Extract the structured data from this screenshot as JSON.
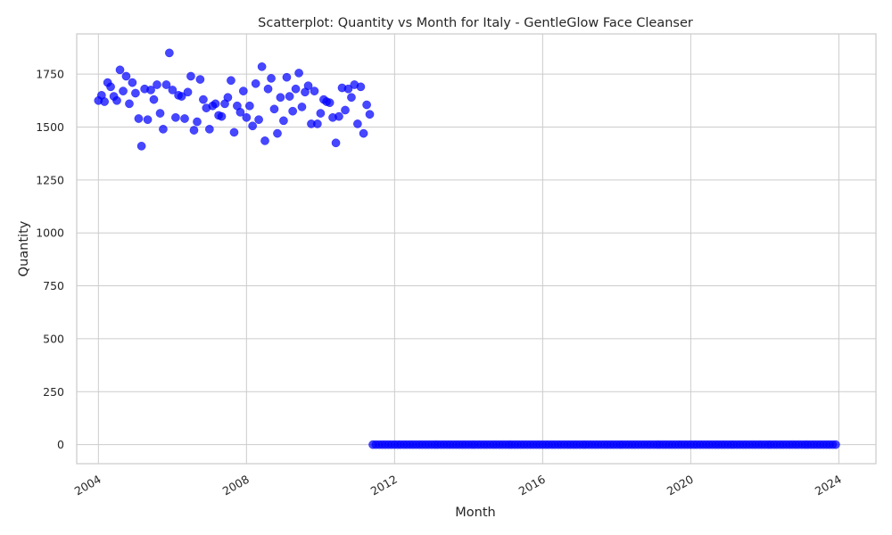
{
  "chart_data": {
    "type": "scatter",
    "title": "Scatterplot: Quantity vs Month for Italy - GentleGlow Face Cleanser",
    "xlabel": "Month",
    "ylabel": "Quantity",
    "xlim": [
      "2003-06-01",
      "2025-01-01"
    ],
    "ylim": [
      -90,
      1940
    ],
    "xticks": [
      {
        "value": "2004-01-01",
        "label": "2004"
      },
      {
        "value": "2008-01-01",
        "label": "2008"
      },
      {
        "value": "2012-01-01",
        "label": "2012"
      },
      {
        "value": "2016-01-01",
        "label": "2016"
      },
      {
        "value": "2020-01-01",
        "label": "2020"
      },
      {
        "value": "2024-01-01",
        "label": "2024"
      }
    ],
    "yticks": [
      0,
      250,
      500,
      750,
      1000,
      1250,
      1500,
      1750
    ],
    "grid": true,
    "marker_color": "#0000ff",
    "series": [
      {
        "points": [
          {
            "x": "2004-01",
            "y": 1625
          },
          {
            "x": "2004-02",
            "y": 1650
          },
          {
            "x": "2004-03",
            "y": 1620
          },
          {
            "x": "2004-04",
            "y": 1710
          },
          {
            "x": "2004-05",
            "y": 1690
          },
          {
            "x": "2004-06",
            "y": 1645
          },
          {
            "x": "2004-07",
            "y": 1625
          },
          {
            "x": "2004-08",
            "y": 1770
          },
          {
            "x": "2004-09",
            "y": 1670
          },
          {
            "x": "2004-10",
            "y": 1740
          },
          {
            "x": "2004-11",
            "y": 1610
          },
          {
            "x": "2004-12",
            "y": 1710
          },
          {
            "x": "2005-01",
            "y": 1660
          },
          {
            "x": "2005-02",
            "y": 1540
          },
          {
            "x": "2005-03",
            "y": 1410
          },
          {
            "x": "2005-04",
            "y": 1680
          },
          {
            "x": "2005-05",
            "y": 1535
          },
          {
            "x": "2005-06",
            "y": 1675
          },
          {
            "x": "2005-07",
            "y": 1630
          },
          {
            "x": "2005-08",
            "y": 1700
          },
          {
            "x": "2005-09",
            "y": 1565
          },
          {
            "x": "2005-10",
            "y": 1490
          },
          {
            "x": "2005-11",
            "y": 1700
          },
          {
            "x": "2005-12",
            "y": 1850
          },
          {
            "x": "2006-01",
            "y": 1675
          },
          {
            "x": "2006-02",
            "y": 1545
          },
          {
            "x": "2006-03",
            "y": 1650
          },
          {
            "x": "2006-04",
            "y": 1645
          },
          {
            "x": "2006-05",
            "y": 1540
          },
          {
            "x": "2006-06",
            "y": 1665
          },
          {
            "x": "2006-07",
            "y": 1740
          },
          {
            "x": "2006-08",
            "y": 1485
          },
          {
            "x": "2006-09",
            "y": 1525
          },
          {
            "x": "2006-10",
            "y": 1725
          },
          {
            "x": "2006-11",
            "y": 1630
          },
          {
            "x": "2006-12",
            "y": 1590
          },
          {
            "x": "2007-01",
            "y": 1490
          },
          {
            "x": "2007-02",
            "y": 1600
          },
          {
            "x": "2007-03",
            "y": 1610
          },
          {
            "x": "2007-04",
            "y": 1555
          },
          {
            "x": "2007-05",
            "y": 1550
          },
          {
            "x": "2007-06",
            "y": 1610
          },
          {
            "x": "2007-07",
            "y": 1640
          },
          {
            "x": "2007-08",
            "y": 1720
          },
          {
            "x": "2007-09",
            "y": 1475
          },
          {
            "x": "2007-10",
            "y": 1600
          },
          {
            "x": "2007-11",
            "y": 1570
          },
          {
            "x": "2007-12",
            "y": 1670
          },
          {
            "x": "2008-01",
            "y": 1545
          },
          {
            "x": "2008-02",
            "y": 1600
          },
          {
            "x": "2008-03",
            "y": 1505
          },
          {
            "x": "2008-04",
            "y": 1705
          },
          {
            "x": "2008-05",
            "y": 1535
          },
          {
            "x": "2008-06",
            "y": 1785
          },
          {
            "x": "2008-07",
            "y": 1435
          },
          {
            "x": "2008-08",
            "y": 1680
          },
          {
            "x": "2008-09",
            "y": 1730
          },
          {
            "x": "2008-10",
            "y": 1585
          },
          {
            "x": "2008-11",
            "y": 1470
          },
          {
            "x": "2008-12",
            "y": 1640
          },
          {
            "x": "2009-01",
            "y": 1530
          },
          {
            "x": "2009-02",
            "y": 1735
          },
          {
            "x": "2009-03",
            "y": 1645
          },
          {
            "x": "2009-04",
            "y": 1575
          },
          {
            "x": "2009-05",
            "y": 1680
          },
          {
            "x": "2009-06",
            "y": 1755
          },
          {
            "x": "2009-07",
            "y": 1595
          },
          {
            "x": "2009-08",
            "y": 1665
          },
          {
            "x": "2009-09",
            "y": 1695
          },
          {
            "x": "2009-10",
            "y": 1515
          },
          {
            "x": "2009-11",
            "y": 1670
          },
          {
            "x": "2009-12",
            "y": 1515
          },
          {
            "x": "2010-01",
            "y": 1565
          },
          {
            "x": "2010-02",
            "y": 1630
          },
          {
            "x": "2010-03",
            "y": 1620
          },
          {
            "x": "2010-04",
            "y": 1615
          },
          {
            "x": "2010-05",
            "y": 1545
          },
          {
            "x": "2010-06",
            "y": 1425
          },
          {
            "x": "2010-07",
            "y": 1550
          },
          {
            "x": "2010-08",
            "y": 1685
          },
          {
            "x": "2010-09",
            "y": 1580
          },
          {
            "x": "2010-10",
            "y": 1680
          },
          {
            "x": "2010-11",
            "y": 1640
          },
          {
            "x": "2010-12",
            "y": 1700
          },
          {
            "x": "2011-01",
            "y": 1515
          },
          {
            "x": "2011-02",
            "y": 1690
          },
          {
            "x": "2011-03",
            "y": 1470
          },
          {
            "x": "2011-04",
            "y": 1605
          },
          {
            "x": "2011-05",
            "y": 1560
          },
          {
            "x": "2011-06",
            "y": 0
          },
          {
            "x": "2011-07",
            "y": 0
          },
          {
            "x": "2011-08",
            "y": 0
          },
          {
            "x": "2011-09",
            "y": 0
          },
          {
            "x": "2011-10",
            "y": 0
          },
          {
            "x": "2011-11",
            "y": 0
          },
          {
            "x": "2011-12",
            "y": 0
          },
          {
            "x": "2012-01",
            "y": 0
          },
          {
            "x": "2012-02",
            "y": 0
          },
          {
            "x": "2012-03",
            "y": 0
          },
          {
            "x": "2012-04",
            "y": 0
          },
          {
            "x": "2012-05",
            "y": 0
          },
          {
            "x": "2012-06",
            "y": 0
          },
          {
            "x": "2012-07",
            "y": 0
          },
          {
            "x": "2012-08",
            "y": 0
          },
          {
            "x": "2012-09",
            "y": 0
          },
          {
            "x": "2012-10",
            "y": 0
          },
          {
            "x": "2012-11",
            "y": 0
          },
          {
            "x": "2012-12",
            "y": 0
          },
          {
            "x": "2013-01",
            "y": 0
          },
          {
            "x": "2013-02",
            "y": 0
          },
          {
            "x": "2013-03",
            "y": 0
          },
          {
            "x": "2013-04",
            "y": 0
          },
          {
            "x": "2013-05",
            "y": 0
          },
          {
            "x": "2013-06",
            "y": 0
          },
          {
            "x": "2013-07",
            "y": 0
          },
          {
            "x": "2013-08",
            "y": 0
          },
          {
            "x": "2013-09",
            "y": 0
          },
          {
            "x": "2013-10",
            "y": 0
          },
          {
            "x": "2013-11",
            "y": 0
          },
          {
            "x": "2013-12",
            "y": 0
          },
          {
            "x": "2014-01",
            "y": 0
          },
          {
            "x": "2014-02",
            "y": 0
          },
          {
            "x": "2014-03",
            "y": 0
          },
          {
            "x": "2014-04",
            "y": 0
          },
          {
            "x": "2014-05",
            "y": 0
          },
          {
            "x": "2014-06",
            "y": 0
          },
          {
            "x": "2014-07",
            "y": 0
          },
          {
            "x": "2014-08",
            "y": 0
          },
          {
            "x": "2014-09",
            "y": 0
          },
          {
            "x": "2014-10",
            "y": 0
          },
          {
            "x": "2014-11",
            "y": 0
          },
          {
            "x": "2014-12",
            "y": 0
          },
          {
            "x": "2015-01",
            "y": 0
          },
          {
            "x": "2015-02",
            "y": 0
          },
          {
            "x": "2015-03",
            "y": 0
          },
          {
            "x": "2015-04",
            "y": 0
          },
          {
            "x": "2015-05",
            "y": 0
          },
          {
            "x": "2015-06",
            "y": 0
          },
          {
            "x": "2015-07",
            "y": 0
          },
          {
            "x": "2015-08",
            "y": 0
          },
          {
            "x": "2015-09",
            "y": 0
          },
          {
            "x": "2015-10",
            "y": 0
          },
          {
            "x": "2015-11",
            "y": 0
          },
          {
            "x": "2015-12",
            "y": 0
          },
          {
            "x": "2016-01",
            "y": 0
          },
          {
            "x": "2016-02",
            "y": 0
          },
          {
            "x": "2016-03",
            "y": 0
          },
          {
            "x": "2016-04",
            "y": 0
          },
          {
            "x": "2016-05",
            "y": 0
          },
          {
            "x": "2016-06",
            "y": 0
          },
          {
            "x": "2016-07",
            "y": 0
          },
          {
            "x": "2016-08",
            "y": 0
          },
          {
            "x": "2016-09",
            "y": 0
          },
          {
            "x": "2016-10",
            "y": 0
          },
          {
            "x": "2016-11",
            "y": 0
          },
          {
            "x": "2016-12",
            "y": 0
          },
          {
            "x": "2017-01",
            "y": 0
          },
          {
            "x": "2017-02",
            "y": 0
          },
          {
            "x": "2017-03",
            "y": 0
          },
          {
            "x": "2017-04",
            "y": 0
          },
          {
            "x": "2017-05",
            "y": 0
          },
          {
            "x": "2017-06",
            "y": 0
          },
          {
            "x": "2017-07",
            "y": 0
          },
          {
            "x": "2017-08",
            "y": 0
          },
          {
            "x": "2017-09",
            "y": 0
          },
          {
            "x": "2017-10",
            "y": 0
          },
          {
            "x": "2017-11",
            "y": 0
          },
          {
            "x": "2017-12",
            "y": 0
          },
          {
            "x": "2018-01",
            "y": 0
          },
          {
            "x": "2018-02",
            "y": 0
          },
          {
            "x": "2018-03",
            "y": 0
          },
          {
            "x": "2018-04",
            "y": 0
          },
          {
            "x": "2018-05",
            "y": 0
          },
          {
            "x": "2018-06",
            "y": 0
          },
          {
            "x": "2018-07",
            "y": 0
          },
          {
            "x": "2018-08",
            "y": 0
          },
          {
            "x": "2018-09",
            "y": 0
          },
          {
            "x": "2018-10",
            "y": 0
          },
          {
            "x": "2018-11",
            "y": 0
          },
          {
            "x": "2018-12",
            "y": 0
          },
          {
            "x": "2019-01",
            "y": 0
          },
          {
            "x": "2019-02",
            "y": 0
          },
          {
            "x": "2019-03",
            "y": 0
          },
          {
            "x": "2019-04",
            "y": 0
          },
          {
            "x": "2019-05",
            "y": 0
          },
          {
            "x": "2019-06",
            "y": 0
          },
          {
            "x": "2019-07",
            "y": 0
          },
          {
            "x": "2019-08",
            "y": 0
          },
          {
            "x": "2019-09",
            "y": 0
          },
          {
            "x": "2019-10",
            "y": 0
          },
          {
            "x": "2019-11",
            "y": 0
          },
          {
            "x": "2019-12",
            "y": 0
          },
          {
            "x": "2020-01",
            "y": 0
          },
          {
            "x": "2020-02",
            "y": 0
          },
          {
            "x": "2020-03",
            "y": 0
          },
          {
            "x": "2020-04",
            "y": 0
          },
          {
            "x": "2020-05",
            "y": 0
          },
          {
            "x": "2020-06",
            "y": 0
          },
          {
            "x": "2020-07",
            "y": 0
          },
          {
            "x": "2020-08",
            "y": 0
          },
          {
            "x": "2020-09",
            "y": 0
          },
          {
            "x": "2020-10",
            "y": 0
          },
          {
            "x": "2020-11",
            "y": 0
          },
          {
            "x": "2020-12",
            "y": 0
          },
          {
            "x": "2021-01",
            "y": 0
          },
          {
            "x": "2021-02",
            "y": 0
          },
          {
            "x": "2021-03",
            "y": 0
          },
          {
            "x": "2021-04",
            "y": 0
          },
          {
            "x": "2021-05",
            "y": 0
          },
          {
            "x": "2021-06",
            "y": 0
          },
          {
            "x": "2021-07",
            "y": 0
          },
          {
            "x": "2021-08",
            "y": 0
          },
          {
            "x": "2021-09",
            "y": 0
          },
          {
            "x": "2021-10",
            "y": 0
          },
          {
            "x": "2021-11",
            "y": 0
          },
          {
            "x": "2021-12",
            "y": 0
          },
          {
            "x": "2022-01",
            "y": 0
          },
          {
            "x": "2022-02",
            "y": 0
          },
          {
            "x": "2022-03",
            "y": 0
          },
          {
            "x": "2022-04",
            "y": 0
          },
          {
            "x": "2022-05",
            "y": 0
          },
          {
            "x": "2022-06",
            "y": 0
          },
          {
            "x": "2022-07",
            "y": 0
          },
          {
            "x": "2022-08",
            "y": 0
          },
          {
            "x": "2022-09",
            "y": 0
          },
          {
            "x": "2022-10",
            "y": 0
          },
          {
            "x": "2022-11",
            "y": 0
          },
          {
            "x": "2022-12",
            "y": 0
          },
          {
            "x": "2023-01",
            "y": 0
          },
          {
            "x": "2023-02",
            "y": 0
          },
          {
            "x": "2023-03",
            "y": 0
          },
          {
            "x": "2023-04",
            "y": 0
          },
          {
            "x": "2023-05",
            "y": 0
          },
          {
            "x": "2023-06",
            "y": 0
          },
          {
            "x": "2023-07",
            "y": 0
          },
          {
            "x": "2023-08",
            "y": 0
          },
          {
            "x": "2023-09",
            "y": 0
          },
          {
            "x": "2023-10",
            "y": 0
          },
          {
            "x": "2023-11",
            "y": 0
          },
          {
            "x": "2023-12",
            "y": 0
          }
        ]
      }
    ]
  }
}
